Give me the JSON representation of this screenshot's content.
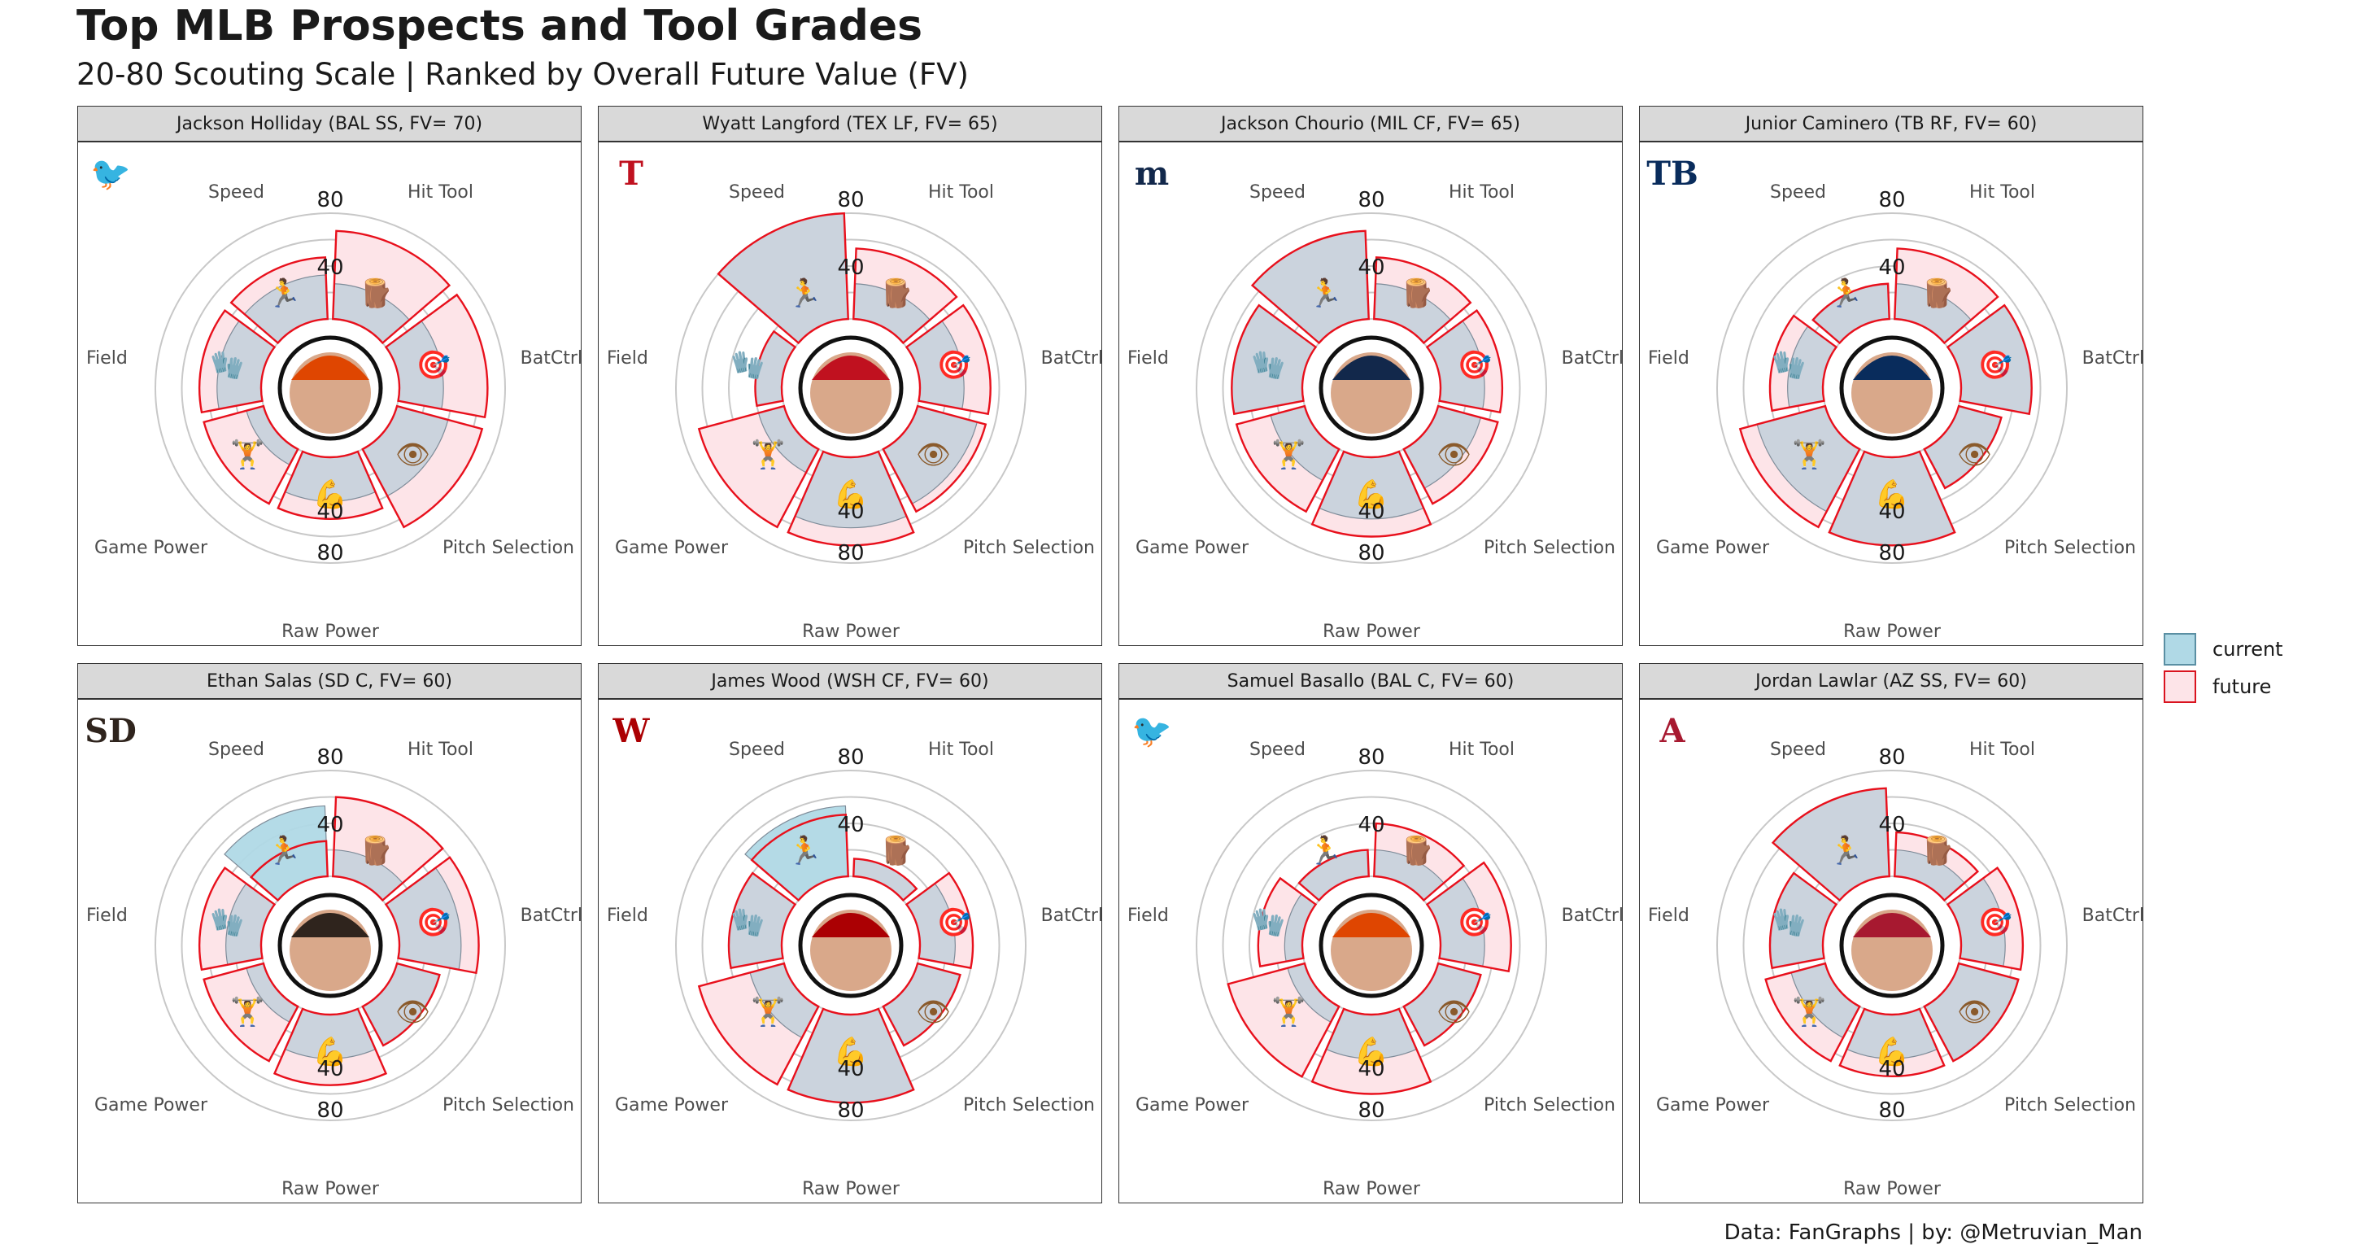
{
  "title": "Top MLB Prospects and Tool Grades",
  "subtitle": "20-80 Scouting Scale | Ranked by Overall Future Value (FV)",
  "caption": "Data: FanGraphs | by: @Metruvian_Man",
  "legend": [
    {
      "label": "current",
      "fill": "#b0d9e6",
      "stroke": "#5a8fa3"
    },
    {
      "label": "future",
      "fill": "#fde4e8",
      "stroke": "#d9131f"
    }
  ],
  "colors": {
    "current_fill": "#c8d2dc",
    "future_fill": "#fde4e8",
    "future_stroke": "#e8101c",
    "grid": "#c8c8c8",
    "speed_current": "#b0d9e6"
  },
  "chart_data": {
    "type": "polar-bar",
    "scale": {
      "min": 20,
      "max": 80,
      "tick_labels": [
        "40",
        "80"
      ]
    },
    "tools": [
      "Hit Tool",
      "BatCtrl",
      "Pitch Selection",
      "Raw Power",
      "Game Power",
      "Field",
      "Speed"
    ],
    "tool_icons": [
      "log-icon",
      "target-icon",
      "eye-icon",
      "flexed-biceps-icon",
      "weightlifter-icon",
      "glove-icon",
      "runner-icon"
    ],
    "tool_glyphs": [
      "🪵",
      "🎯",
      "👁",
      "💪",
      "🏋",
      "🧤",
      "🏃"
    ],
    "players": [
      {
        "label": "Jackson Holliday (BAL SS, FV= 70)",
        "team": "BAL",
        "logo": "orioles-logo",
        "logo_glyph": "🐦",
        "logo_color": "#df4601",
        "current": [
          40,
          45,
          50,
          45,
          30,
          45,
          45
        ],
        "future": [
          70,
          70,
          70,
          55,
          55,
          55,
          55
        ]
      },
      {
        "label": "Wyatt Langford (TEX LF, FV= 65)",
        "team": "TEX",
        "logo": "rangers-logo",
        "logo_glyph": "T",
        "logo_color": "#c0111f",
        "current": [
          40,
          45,
          55,
          60,
          35,
          35,
          80
        ],
        "future": [
          60,
          60,
          60,
          70,
          70,
          35,
          80
        ]
      },
      {
        "label": "Jackson Chourio (MIL CF, FV= 65)",
        "team": "MIL",
        "logo": "brewers-logo",
        "logo_glyph": "m",
        "logo_color": "#12284b",
        "current": [
          40,
          45,
          45,
          55,
          40,
          60,
          70
        ],
        "future": [
          55,
          55,
          55,
          65,
          60,
          60,
          70
        ]
      },
      {
        "label": "Junior Caminero (TB RF, FV= 60)",
        "team": "TB",
        "logo": "rays-logo",
        "logo_glyph": "TB",
        "logo_color": "#092c5c",
        "current": [
          40,
          60,
          45,
          70,
          60,
          40,
          40
        ],
        "future": [
          60,
          60,
          45,
          70,
          70,
          50,
          40
        ]
      },
      {
        "label": "Ethan Salas (SD C, FV= 60)",
        "team": "SD",
        "logo": "padres-logo",
        "logo_glyph": "SD",
        "logo_color": "#2f241d",
        "current": [
          35,
          55,
          45,
          45,
          30,
          40,
          60
        ],
        "future": [
          65,
          65,
          45,
          60,
          55,
          55,
          40
        ]
      },
      {
        "label": "James Wood (WSH CF, FV= 60)",
        "team": "WSH",
        "logo": "nationals-logo",
        "logo_glyph": "W",
        "logo_color": "#ab0003",
        "current": [
          30,
          40,
          45,
          70,
          40,
          50,
          60
        ],
        "future": [
          30,
          50,
          45,
          70,
          70,
          50,
          55
        ]
      },
      {
        "label": "Samuel Basallo (BAL C, FV= 60)",
        "team": "BAL",
        "logo": "orioles-logo",
        "logo_glyph": "🐦",
        "logo_color": "#df4601",
        "current": [
          35,
          45,
          45,
          45,
          30,
          30,
          35
        ],
        "future": [
          50,
          60,
          45,
          65,
          65,
          45,
          35
        ]
      },
      {
        "label": "Jordan Lawlar (AZ SS, FV= 60)",
        "team": "AZ",
        "logo": "diamondbacks-logo",
        "logo_glyph": "A",
        "logo_color": "#a71930",
        "current": [
          35,
          45,
          55,
          45,
          40,
          50,
          70
        ],
        "future": [
          45,
          55,
          55,
          55,
          55,
          50,
          70
        ]
      }
    ]
  }
}
